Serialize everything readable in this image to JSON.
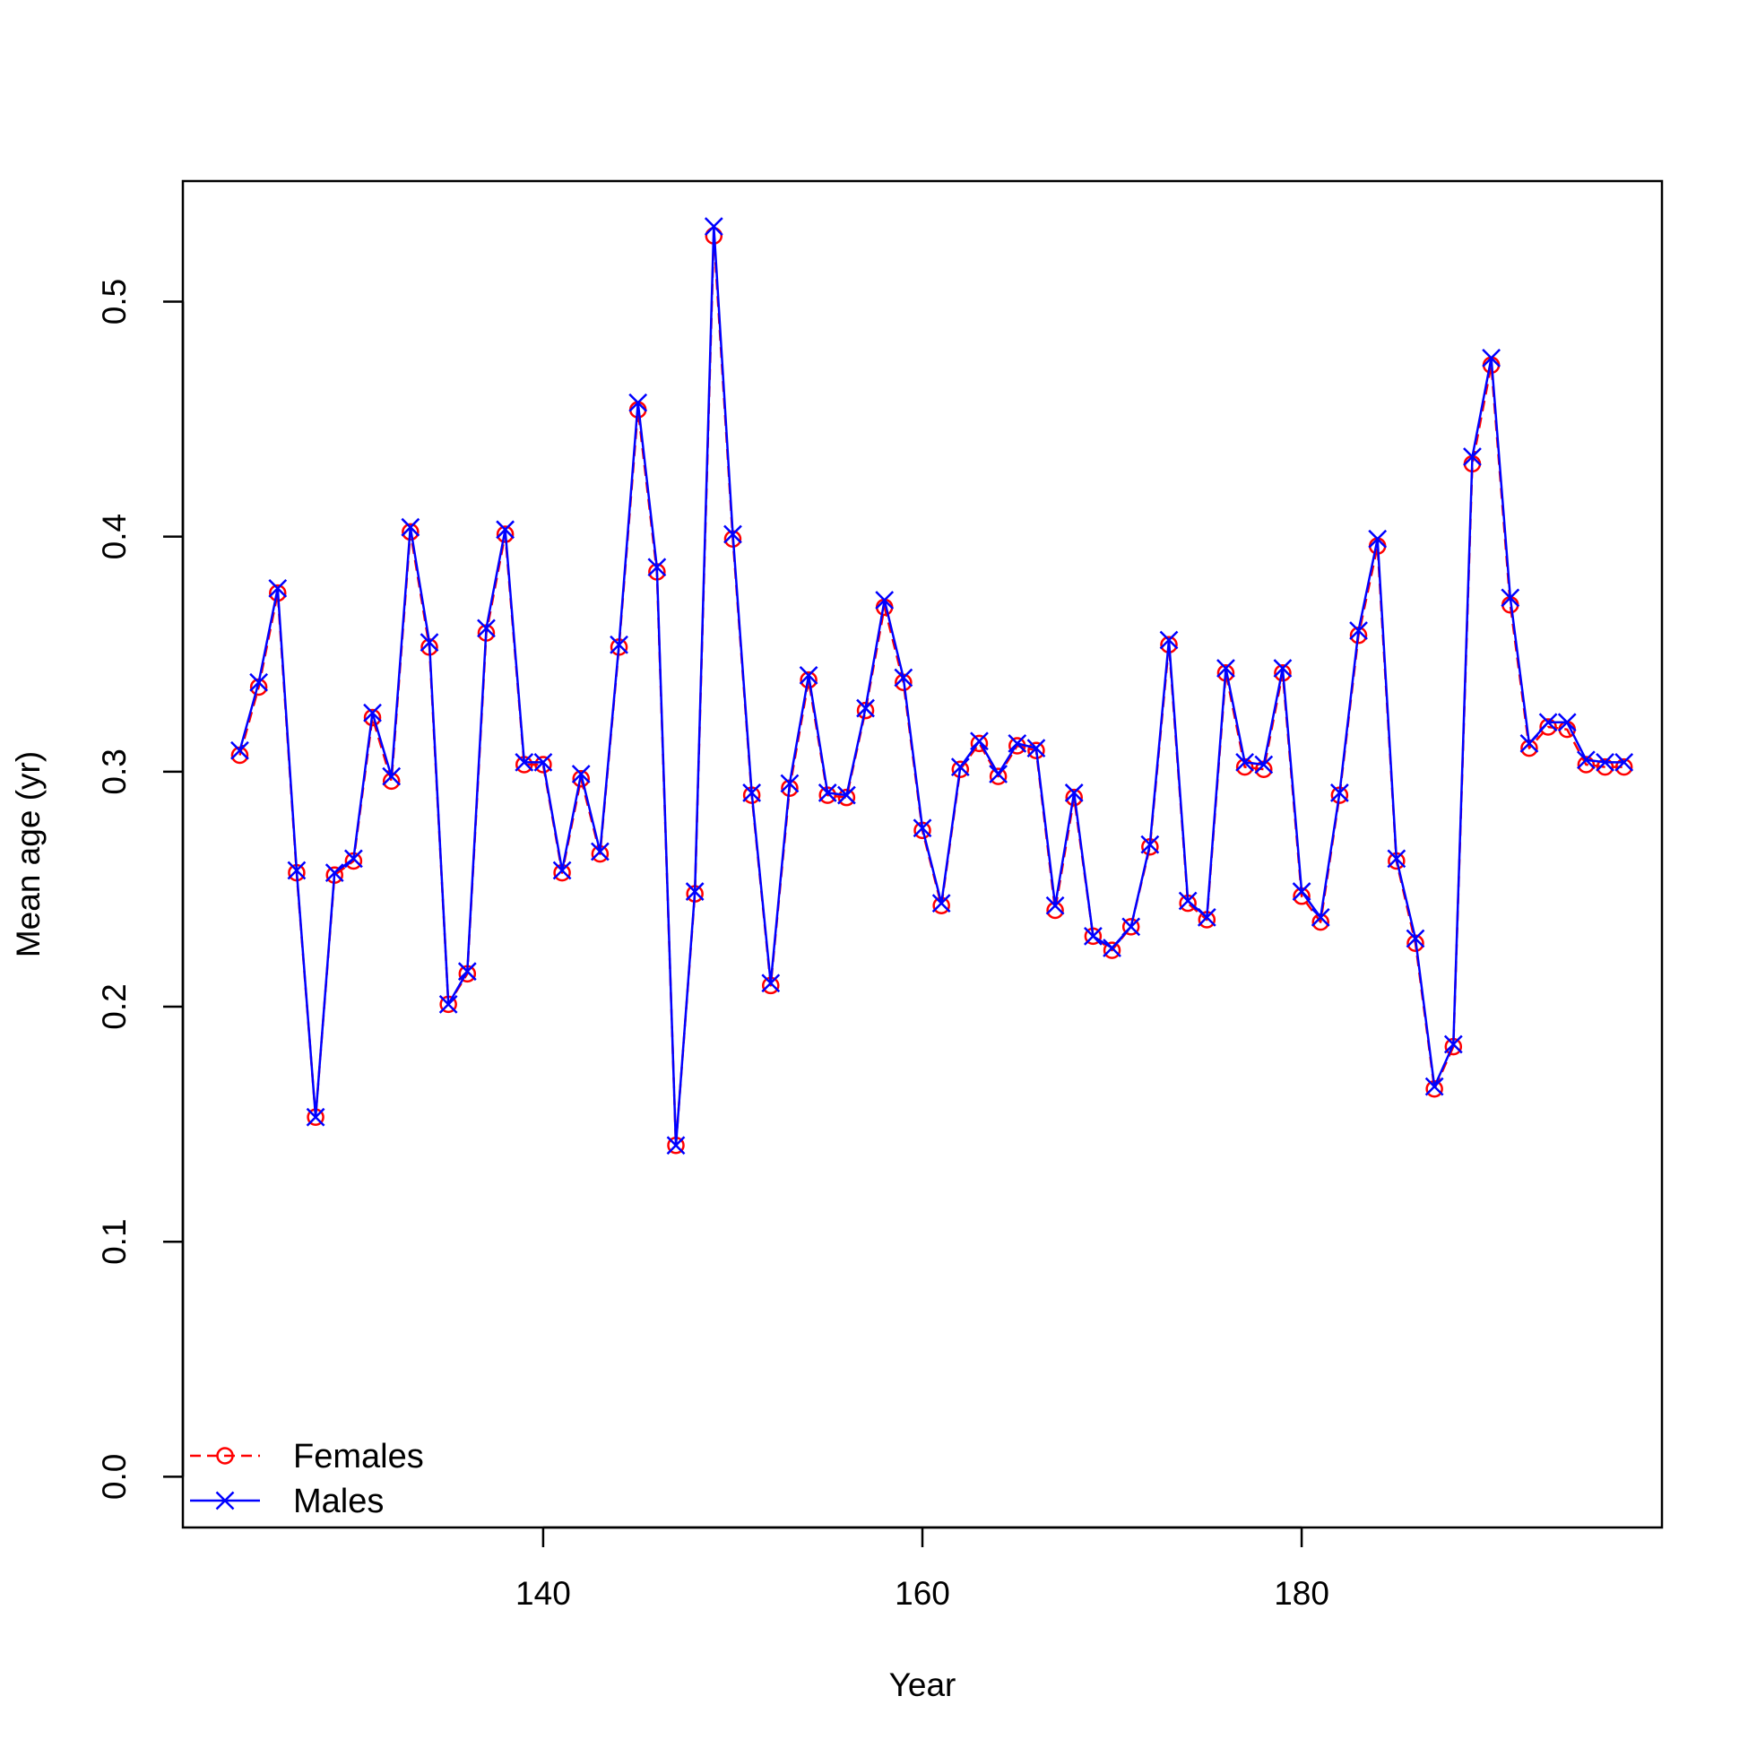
{
  "chart_data": {
    "type": "line",
    "title": "",
    "xlabel": "Year",
    "ylabel": "Mean age (yr)",
    "xlim": [
      121,
      199
    ],
    "ylim": [
      -0.0216,
      0.5513
    ],
    "x_ticks": [
      "140",
      "160",
      "180"
    ],
    "x_tick_values": [
      140,
      160,
      180
    ],
    "y_ticks": [
      "0.0",
      "0.1",
      "0.2",
      "0.3",
      "0.4",
      "0.5"
    ],
    "y_tick_values": [
      0.0,
      0.1,
      0.2,
      0.3,
      0.4,
      0.5
    ],
    "grid": false,
    "legend_position": "bottom-left",
    "x": [
      124,
      125,
      126,
      127,
      128,
      129,
      130,
      131,
      132,
      133,
      134,
      135,
      136,
      137,
      138,
      139,
      140,
      141,
      142,
      143,
      144,
      145,
      146,
      147,
      148,
      149,
      150,
      151,
      152,
      153,
      154,
      155,
      156,
      157,
      158,
      159,
      160,
      161,
      162,
      163,
      164,
      165,
      166,
      167,
      168,
      169,
      170,
      171,
      172,
      173,
      174,
      175,
      176,
      177,
      178,
      179,
      180,
      181,
      182,
      183,
      184,
      185,
      186,
      187,
      188,
      189,
      190,
      191,
      192,
      193,
      194,
      195,
      196,
      197
    ],
    "series": [
      {
        "name": "Females",
        "color": "#ff0000",
        "line_style": "dashed",
        "marker": "circle",
        "values": [
          0.307,
          0.336,
          0.376,
          0.257,
          0.153,
          0.256,
          0.262,
          0.323,
          0.296,
          0.402,
          0.353,
          0.201,
          0.214,
          0.359,
          0.401,
          0.303,
          0.303,
          0.257,
          0.297,
          0.265,
          0.353,
          0.454,
          0.385,
          0.141,
          0.248,
          0.528,
          0.399,
          0.29,
          0.209,
          0.293,
          0.339,
          0.29,
          0.289,
          0.326,
          0.37,
          0.338,
          0.275,
          0.243,
          0.301,
          0.312,
          0.298,
          0.311,
          0.309,
          0.241,
          0.289,
          0.23,
          0.224,
          0.234,
          0.268,
          0.354,
          0.244,
          0.237,
          0.342,
          0.302,
          0.301,
          0.342,
          0.247,
          0.236,
          0.29,
          0.358,
          0.396,
          0.262,
          0.227,
          0.165,
          0.183,
          0.431,
          0.473,
          0.371,
          0.31,
          0.319,
          0.318,
          0.303,
          0.302,
          0.302
        ]
      },
      {
        "name": "Males",
        "color": "#0000ff",
        "line_style": "solid",
        "marker": "x",
        "values": [
          0.309,
          0.338,
          0.378,
          0.258,
          0.153,
          0.257,
          0.263,
          0.325,
          0.298,
          0.404,
          0.355,
          0.201,
          0.215,
          0.361,
          0.403,
          0.304,
          0.304,
          0.258,
          0.299,
          0.266,
          0.354,
          0.457,
          0.387,
          0.141,
          0.249,
          0.532,
          0.401,
          0.291,
          0.21,
          0.295,
          0.341,
          0.291,
          0.29,
          0.327,
          0.373,
          0.34,
          0.276,
          0.244,
          0.302,
          0.313,
          0.299,
          0.312,
          0.31,
          0.243,
          0.291,
          0.23,
          0.225,
          0.234,
          0.269,
          0.356,
          0.245,
          0.238,
          0.344,
          0.304,
          0.303,
          0.344,
          0.249,
          0.238,
          0.291,
          0.36,
          0.399,
          0.263,
          0.229,
          0.166,
          0.184,
          0.434,
          0.476,
          0.374,
          0.312,
          0.321,
          0.321,
          0.305,
          0.304,
          0.304
        ]
      }
    ]
  }
}
